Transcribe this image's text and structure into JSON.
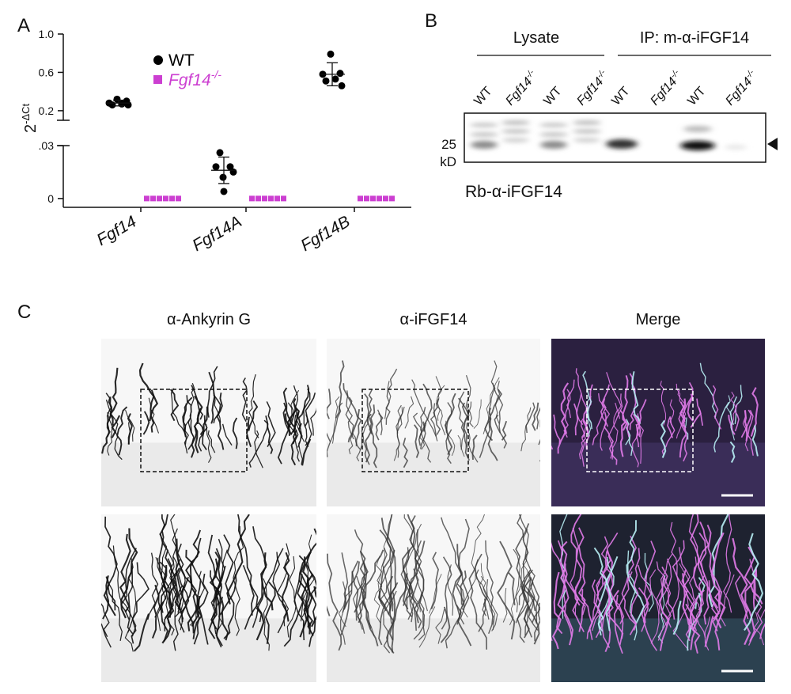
{
  "panels": {
    "a": "A",
    "b": "B",
    "c": "C"
  },
  "chart_data": {
    "type": "scatter",
    "y_label": "2",
    "y_label_sup": "-ΔCt",
    "categories": [
      "Fgf14",
      "Fgf14A",
      "Fgf14B"
    ],
    "y_segments": [
      {
        "ylim": [
          0.1,
          1.0
        ],
        "yticks": [
          0.2,
          0.6,
          {
            "value": 1,
            "label": "1.0"
          }
        ]
      },
      {
        "ylim": [
          -0.005,
          0.03
        ],
        "yticks": [
          0,
          {
            "value": 0.03,
            "label": ".03"
          }
        ]
      }
    ],
    "series": [
      {
        "name": "WT",
        "color": "#000000",
        "marker": "circle",
        "values": [
          [
            0.32,
            0.3,
            0.28,
            0.27,
            0.26,
            0.26
          ],
          [
            0.026,
            0.018,
            0.018,
            0.015,
            0.012,
            0.004
          ],
          [
            0.79,
            0.59,
            0.58,
            0.53,
            0.51,
            0.46
          ]
        ],
        "means": [
          0.28,
          0.016,
          0.58
        ],
        "sds": [
          0.03,
          0.0075,
          0.12
        ]
      },
      {
        "name": "Fgf14",
        "name_sup": "-/-",
        "color": "#cc3fd1",
        "marker": "square",
        "values": [
          [
            0,
            0,
            0,
            0,
            0,
            0
          ],
          [
            0,
            0,
            0,
            0,
            0,
            0
          ],
          [
            0,
            0,
            0,
            0,
            0,
            0
          ]
        ]
      }
    ]
  },
  "blot": {
    "groups": [
      "Lysate",
      "IP: m-α-iFGF14"
    ],
    "lanes": [
      {
        "text": "WT"
      },
      {
        "text": "Fgf14",
        "sup": "-/-"
      },
      {
        "text": "WT"
      },
      {
        "text": "Fgf14",
        "sup": "-/-"
      },
      {
        "text": "WT"
      },
      {
        "text": "Fgf14",
        "sup": "-/-"
      },
      {
        "text": "WT"
      },
      {
        "text": "Fgf14",
        "sup": "-/-"
      }
    ],
    "marker": "25",
    "unit": "kD",
    "antibody": "Rb-α-iFGF14"
  },
  "micrographs": {
    "columns": [
      "α-Ankyrin G",
      "α-iFGF14",
      "Merge"
    ]
  }
}
